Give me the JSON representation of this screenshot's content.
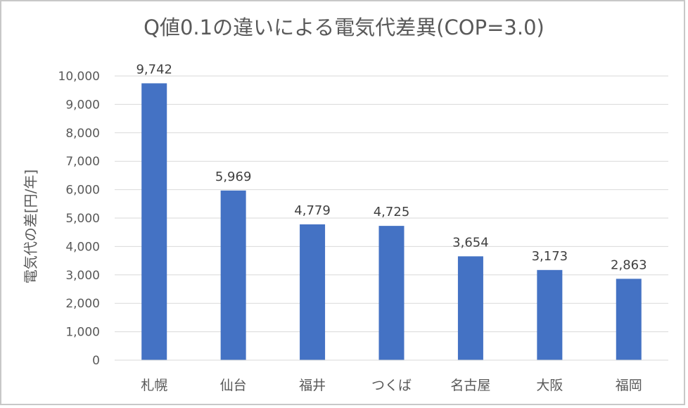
{
  "chart_data": {
    "type": "bar",
    "title": "Q値0.1の違いによる電気代差異(COP=3.0)",
    "xlabel": "",
    "ylabel": "電気代の差[円/年]",
    "categories": [
      "札幌",
      "仙台",
      "福井",
      "つくば",
      "名古屋",
      "大阪",
      "福岡"
    ],
    "values": [
      9742,
      5969,
      4779,
      4725,
      3654,
      3173,
      2863
    ],
    "value_labels": [
      "9,742",
      "5,969",
      "4,779",
      "4,725",
      "3,654",
      "3,173",
      "2,863"
    ],
    "ylim": [
      0,
      10000
    ],
    "yticks": [
      0,
      1000,
      2000,
      3000,
      4000,
      5000,
      6000,
      7000,
      8000,
      9000,
      10000
    ],
    "ytick_labels": [
      "0",
      "1,000",
      "2,000",
      "3,000",
      "4,000",
      "5,000",
      "6,000",
      "7,000",
      "8,000",
      "9,000",
      "10,000"
    ],
    "grid": true,
    "legend": "none",
    "bar_color": "#4472c4",
    "grid_color": "#d9d9d9"
  }
}
